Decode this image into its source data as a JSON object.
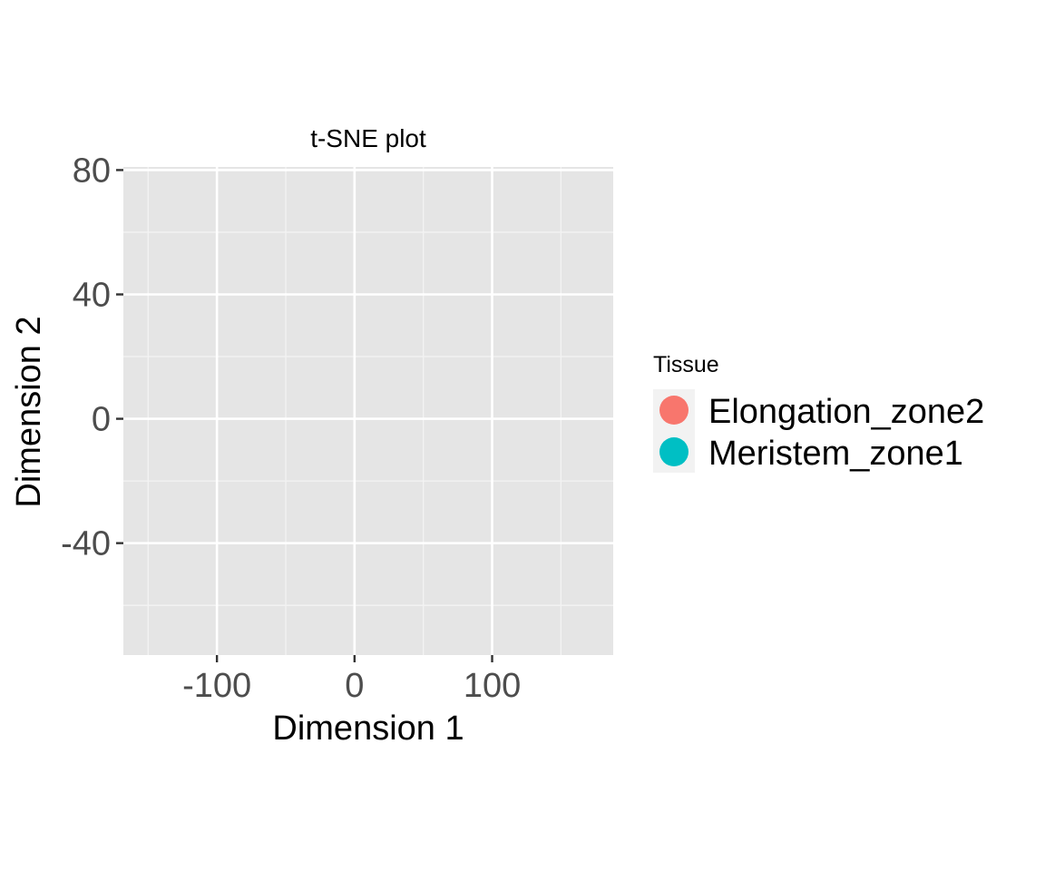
{
  "chart_data": {
    "type": "scatter",
    "title": "t-SNE plot",
    "xlabel": "Dimension 1",
    "ylabel": "Dimension 2",
    "xlim": [
      -168,
      188
    ],
    "ylim": [
      -76,
      81
    ],
    "x_ticks": [
      -100,
      0,
      100
    ],
    "x_tick_labels": [
      "-100",
      "0",
      "100"
    ],
    "y_ticks": [
      -40,
      0,
      40,
      80
    ],
    "y_tick_labels": [
      "-40",
      "0",
      "40",
      "80"
    ],
    "x_minor": [
      -150,
      -50,
      50,
      150
    ],
    "y_minor": [
      -60,
      -20,
      20,
      60
    ],
    "grid": true,
    "legend_position": "right",
    "legend_title": "Tissue",
    "series": [
      {
        "name": "Elongation_zone2",
        "color": "#F8766D",
        "points": []
      },
      {
        "name": "Meristem_zone1",
        "color": "#00BFC4",
        "points": []
      }
    ]
  }
}
